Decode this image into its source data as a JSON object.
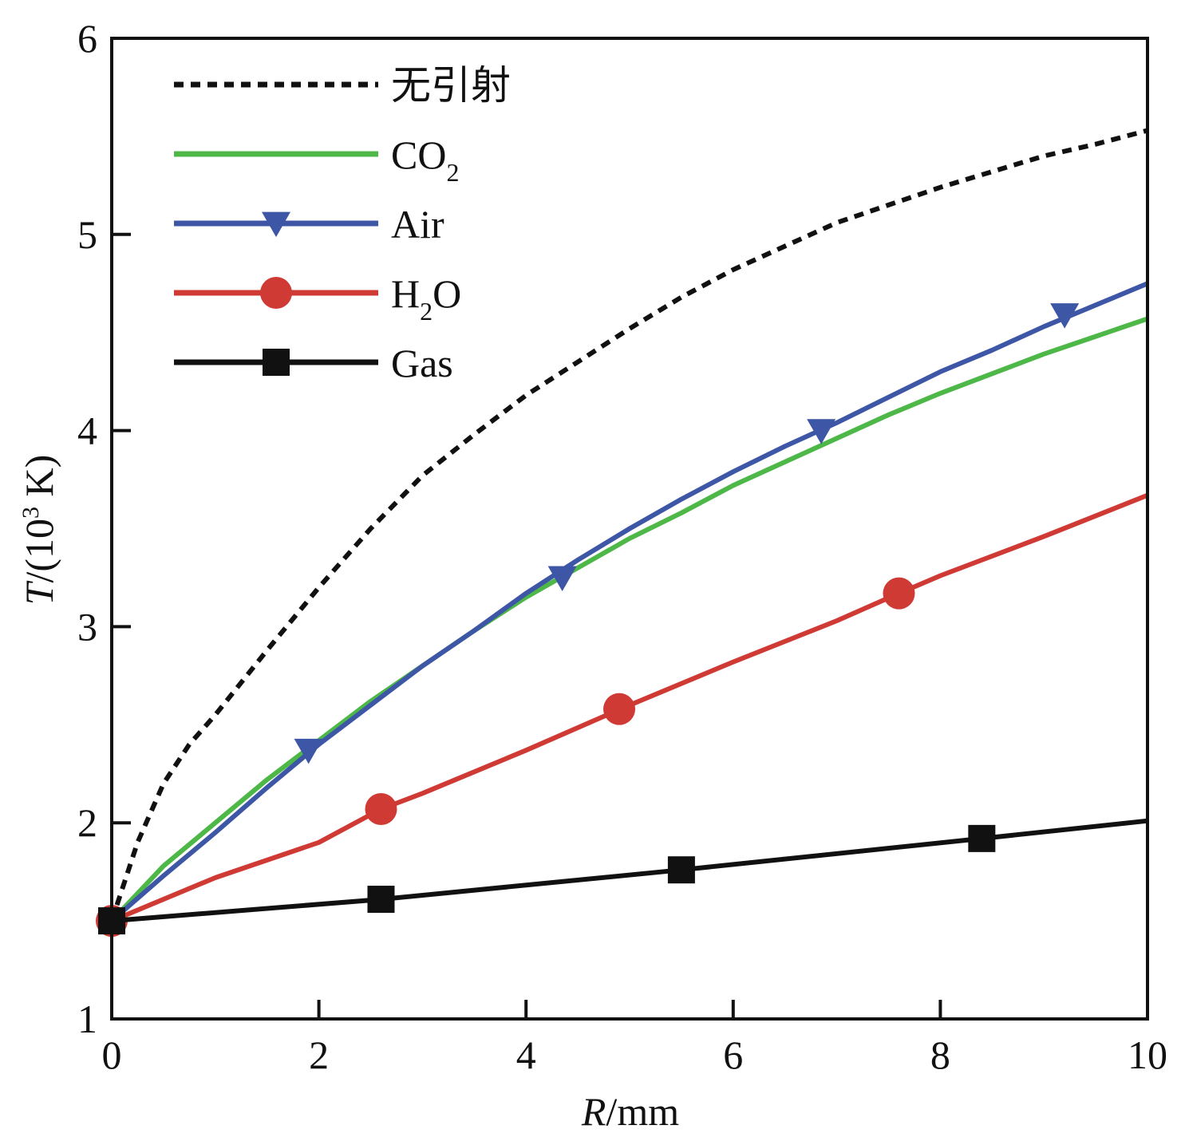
{
  "chart_data": {
    "type": "line",
    "title": "",
    "xlabel": {
      "var": "R",
      "unit": "/mm"
    },
    "ylabel": {
      "var": "T",
      "pre": "/(10",
      "sup": "3",
      "post": " K)"
    },
    "xlim": [
      0,
      10
    ],
    "ylim": [
      1,
      6
    ],
    "xticks": [
      0,
      2,
      4,
      6,
      8,
      10
    ],
    "yticks": [
      1,
      2,
      3,
      4,
      5,
      6
    ],
    "grid": false,
    "legend_position": "top-left",
    "series": [
      {
        "name": "无引射",
        "color": "#111111",
        "style": "dotted",
        "marker": "none",
        "x": [
          0,
          0.25,
          0.5,
          0.75,
          1,
          1.5,
          2,
          2.5,
          3,
          3.5,
          4,
          4.5,
          5,
          5.5,
          6,
          6.5,
          7,
          7.5,
          8,
          8.5,
          9,
          9.5,
          10
        ],
        "y": [
          1.5,
          1.9,
          2.2,
          2.4,
          2.55,
          2.88,
          3.2,
          3.5,
          3.77,
          3.98,
          4.18,
          4.35,
          4.52,
          4.68,
          4.82,
          4.94,
          5.06,
          5.15,
          5.24,
          5.32,
          5.4,
          5.46,
          5.53
        ]
      },
      {
        "name": "CO",
        "name_sub": "2",
        "color": "#4db848",
        "style": "solid",
        "marker": "none",
        "x": [
          0,
          0.5,
          1,
          1.5,
          2,
          2.5,
          3,
          3.5,
          4,
          4.5,
          5,
          5.5,
          6,
          6.5,
          7,
          7.5,
          8,
          8.5,
          9,
          9.5,
          10
        ],
        "y": [
          1.5,
          1.78,
          2.0,
          2.22,
          2.42,
          2.62,
          2.8,
          2.98,
          3.15,
          3.3,
          3.45,
          3.58,
          3.72,
          3.84,
          3.96,
          4.08,
          4.19,
          4.29,
          4.39,
          4.48,
          4.57
        ]
      },
      {
        "name": "Air",
        "color": "#3d56a6",
        "style": "solid",
        "marker": "triangle-down",
        "x": [
          0,
          0.5,
          1,
          1.5,
          2,
          2.5,
          3,
          3.5,
          4,
          4.5,
          5,
          5.5,
          6,
          6.5,
          7,
          7.5,
          8,
          8.5,
          9,
          9.5,
          10
        ],
        "y": [
          1.5,
          1.73,
          1.95,
          2.18,
          2.4,
          2.6,
          2.8,
          2.98,
          3.17,
          3.34,
          3.5,
          3.65,
          3.79,
          3.92,
          4.04,
          4.17,
          4.3,
          4.41,
          4.53,
          4.64,
          4.75
        ],
        "marker_x": [
          1.9,
          4.35,
          6.85,
          9.2
        ],
        "marker_y": [
          2.37,
          3.25,
          4.0,
          4.59
        ]
      },
      {
        "name": "H",
        "name_sub": "2",
        "name_post": "O",
        "color": "#d03a35",
        "style": "solid",
        "marker": "circle",
        "x": [
          0,
          1,
          2,
          2.6,
          3,
          4,
          5,
          6,
          7,
          7.6,
          8,
          9,
          10
        ],
        "y": [
          1.5,
          1.72,
          1.9,
          2.07,
          2.15,
          2.37,
          2.6,
          2.82,
          3.03,
          3.17,
          3.26,
          3.46,
          3.67
        ],
        "marker_x": [
          0,
          2.6,
          4.9,
          7.6
        ],
        "marker_y": [
          1.5,
          2.07,
          2.58,
          3.17
        ]
      },
      {
        "name": "Gas",
        "color": "#111111",
        "style": "solid",
        "marker": "square",
        "x": [
          0,
          2.6,
          5.5,
          8.4,
          10
        ],
        "y": [
          1.5,
          1.61,
          1.76,
          1.92,
          2.01
        ],
        "marker_x": [
          0,
          2.6,
          5.5,
          8.4
        ],
        "marker_y": [
          1.5,
          1.61,
          1.76,
          1.92
        ]
      }
    ]
  }
}
